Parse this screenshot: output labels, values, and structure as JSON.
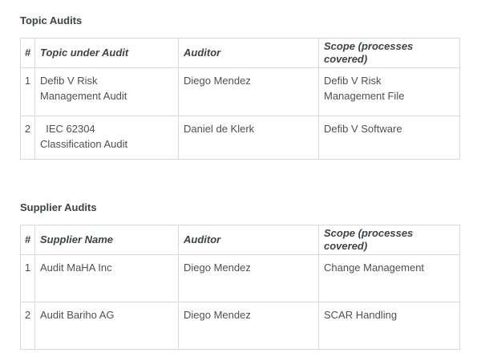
{
  "colors": {
    "background": "#ffffff",
    "border": "#d9d9d9",
    "title_text": "#3d4347",
    "header_text": "#3d4347",
    "cell_text": "#4c5156"
  },
  "sections": [
    {
      "title": "Topic Audits",
      "columns": [
        "#",
        "Topic under Audit",
        "Auditor",
        "Scope (processes covered)"
      ],
      "rows": [
        {
          "num": "1",
          "name": "Defib V Risk\nManagement Audit",
          "auditor": "Diego Mendez",
          "scope": "Defib V Risk\nManagement File"
        },
        {
          "num": "2",
          "name": "  IEC 62304\nClassification Audit",
          "auditor": "Daniel de Klerk",
          "scope": "Defib V Software"
        }
      ]
    },
    {
      "title": "Supplier Audits",
      "columns": [
        "#",
        "Supplier Name",
        "Auditor",
        "Scope (processes covered)"
      ],
      "rows": [
        {
          "num": "1",
          "name": "Audit MaHA Inc",
          "auditor": "Diego Mendez",
          "scope": "Change Management"
        },
        {
          "num": "2",
          "name": "Audit Bariho AG",
          "auditor": "Diego Mendez",
          "scope": "SCAR Handling"
        }
      ]
    }
  ]
}
